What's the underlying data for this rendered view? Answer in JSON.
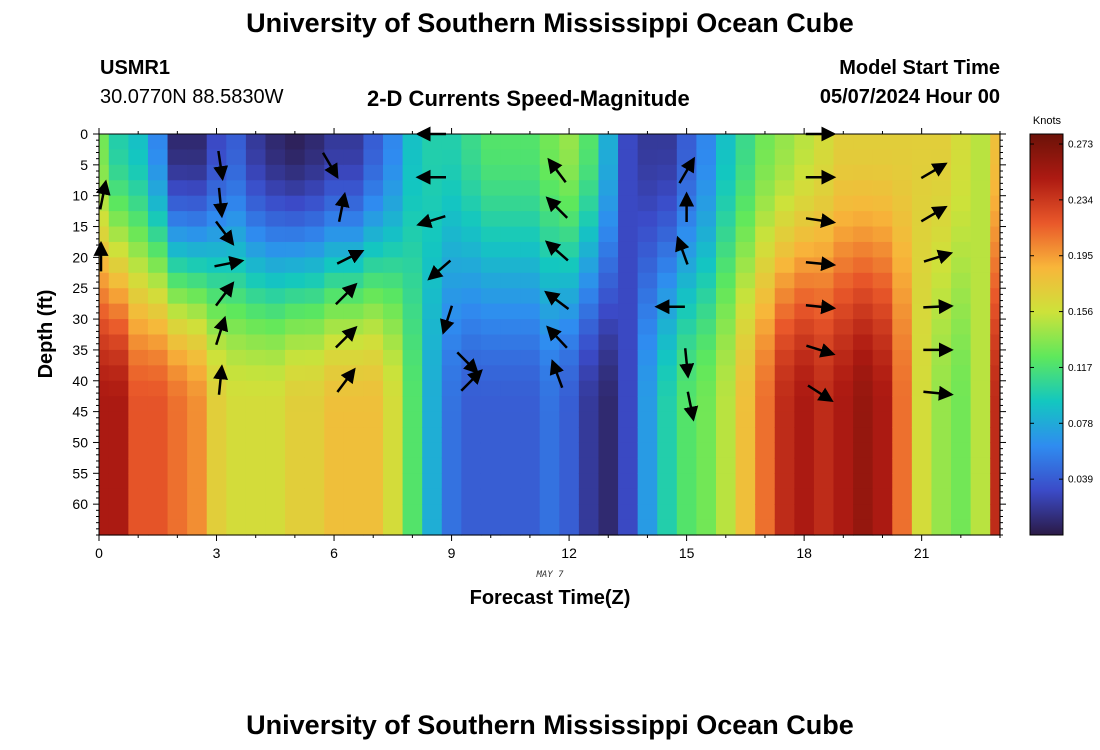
{
  "header": {
    "title_top": "University of Southern Mississippi Ocean Cube",
    "title_bottom": "University of Southern Mississippi Ocean Cube",
    "station": "USMR1",
    "coords": "30.0770N  88.5830W",
    "plot_title": "2-D Currents Speed-Magnitude",
    "model_label": "Model Start Time",
    "model_time": "05/07/2024 Hour 00"
  },
  "colors": {
    "ramp": [
      "#2b1a46",
      "#3b4bc8",
      "#2f8cf0",
      "#13c7c0",
      "#5ee85c",
      "#cde23a",
      "#f8b63a",
      "#e9582a",
      "#ad1a12",
      "#6b1208"
    ]
  },
  "chart_data": {
    "type": "heatmap",
    "xlabel": "Forecast Time(Z)",
    "ylabel": "Depth (ft)",
    "x_sublabel": "MAY 7",
    "xlim": [
      0,
      23
    ],
    "ylim": [
      0,
      65
    ],
    "x_ticks": [
      0,
      3,
      6,
      9,
      12,
      15,
      18,
      21
    ],
    "y_ticks": [
      0,
      5,
      10,
      15,
      20,
      25,
      30,
      35,
      40,
      45,
      50,
      55,
      60
    ],
    "colorbar": {
      "label": "Knots",
      "min": 0,
      "max": 0.28,
      "ticks": [
        0.039,
        0.078,
        0.117,
        0.156,
        0.195,
        0.234,
        0.273
      ]
    },
    "time_profiles": [
      {
        "t": 0.0,
        "surface": 0.13,
        "deep": 0.25
      },
      {
        "t": 0.5,
        "surface": 0.1,
        "deep": 0.25
      },
      {
        "t": 1.0,
        "surface": 0.09,
        "deep": 0.22
      },
      {
        "t": 1.5,
        "surface": 0.06,
        "deep": 0.22
      },
      {
        "t": 2.0,
        "surface": 0.01,
        "deep": 0.21
      },
      {
        "t": 2.5,
        "surface": 0.01,
        "deep": 0.2
      },
      {
        "t": 3.0,
        "surface": 0.03,
        "deep": 0.17
      },
      {
        "t": 3.5,
        "surface": 0.04,
        "deep": 0.16
      },
      {
        "t": 4.0,
        "surface": 0.02,
        "deep": 0.16
      },
      {
        "t": 4.5,
        "surface": 0.01,
        "deep": 0.16
      },
      {
        "t": 5.0,
        "surface": 0.005,
        "deep": 0.17
      },
      {
        "t": 5.5,
        "surface": 0.01,
        "deep": 0.17
      },
      {
        "t": 6.0,
        "surface": 0.02,
        "deep": 0.18
      },
      {
        "t": 6.5,
        "surface": 0.02,
        "deep": 0.18
      },
      {
        "t": 7.0,
        "surface": 0.04,
        "deep": 0.18
      },
      {
        "t": 7.5,
        "surface": 0.06,
        "deep": 0.16
      },
      {
        "t": 8.0,
        "surface": 0.09,
        "deep": 0.12
      },
      {
        "t": 8.5,
        "surface": 0.1,
        "deep": 0.08
      },
      {
        "t": 9.0,
        "surface": 0.1,
        "deep": 0.05
      },
      {
        "t": 9.5,
        "surface": 0.11,
        "deep": 0.04
      },
      {
        "t": 10.0,
        "surface": 0.12,
        "deep": 0.04
      },
      {
        "t": 10.5,
        "surface": 0.12,
        "deep": 0.04
      },
      {
        "t": 11.0,
        "surface": 0.12,
        "deep": 0.04
      },
      {
        "t": 11.5,
        "surface": 0.13,
        "deep": 0.05
      },
      {
        "t": 12.0,
        "surface": 0.14,
        "deep": 0.04
      },
      {
        "t": 12.5,
        "surface": 0.12,
        "deep": 0.02
      },
      {
        "t": 13.0,
        "surface": 0.08,
        "deep": 0.01
      },
      {
        "t": 13.5,
        "surface": 0.03,
        "deep": 0.03
      },
      {
        "t": 14.0,
        "surface": 0.02,
        "deep": 0.07
      },
      {
        "t": 14.5,
        "surface": 0.02,
        "deep": 0.1
      },
      {
        "t": 15.0,
        "surface": 0.04,
        "deep": 0.12
      },
      {
        "t": 15.5,
        "surface": 0.06,
        "deep": 0.13
      },
      {
        "t": 16.0,
        "surface": 0.09,
        "deep": 0.15
      },
      {
        "t": 16.5,
        "surface": 0.11,
        "deep": 0.18
      },
      {
        "t": 17.0,
        "surface": 0.13,
        "deep": 0.21
      },
      {
        "t": 17.5,
        "surface": 0.14,
        "deep": 0.24
      },
      {
        "t": 18.0,
        "surface": 0.15,
        "deep": 0.25
      },
      {
        "t": 18.5,
        "surface": 0.16,
        "deep": 0.24
      },
      {
        "t": 19.0,
        "surface": 0.17,
        "deep": 0.25
      },
      {
        "t": 19.5,
        "surface": 0.17,
        "deep": 0.26
      },
      {
        "t": 20.0,
        "surface": 0.17,
        "deep": 0.25
      },
      {
        "t": 20.5,
        "surface": 0.17,
        "deep": 0.21
      },
      {
        "t": 21.0,
        "surface": 0.17,
        "deep": 0.16
      },
      {
        "t": 21.5,
        "surface": 0.17,
        "deep": 0.14
      },
      {
        "t": 22.0,
        "surface": 0.16,
        "deep": 0.13
      },
      {
        "t": 22.5,
        "surface": 0.15,
        "deep": 0.15
      },
      {
        "t": 23.0,
        "surface": 0.18,
        "deep": 0.24
      }
    ],
    "vectors": [
      {
        "t": 0.1,
        "d": 10,
        "dx": 0.2,
        "dy": 1
      },
      {
        "t": 0.05,
        "d": 20,
        "dx": 0,
        "dy": 1
      },
      {
        "t": 3.1,
        "d": 5,
        "dx": 0.15,
        "dy": -1
      },
      {
        "t": 3.1,
        "d": 11,
        "dx": 0.1,
        "dy": -1
      },
      {
        "t": 3.2,
        "d": 16,
        "dx": 0.6,
        "dy": -0.8
      },
      {
        "t": 3.3,
        "d": 21,
        "dx": 1,
        "dy": 0.2
      },
      {
        "t": 3.2,
        "d": 26,
        "dx": 0.6,
        "dy": 0.8
      },
      {
        "t": 3.1,
        "d": 32,
        "dx": 0.3,
        "dy": 0.95
      },
      {
        "t": 3.1,
        "d": 40,
        "dx": 0.1,
        "dy": 1
      },
      {
        "t": 5.9,
        "d": 5,
        "dx": 0.5,
        "dy": -0.85
      },
      {
        "t": 6.2,
        "d": 12,
        "dx": 0.2,
        "dy": 1
      },
      {
        "t": 6.4,
        "d": 20,
        "dx": 0.9,
        "dy": 0.45
      },
      {
        "t": 6.3,
        "d": 26,
        "dx": 0.7,
        "dy": 0.7
      },
      {
        "t": 6.3,
        "d": 33,
        "dx": 0.7,
        "dy": 0.7
      },
      {
        "t": 6.3,
        "d": 40,
        "dx": 0.6,
        "dy": 0.8
      },
      {
        "t": 8.5,
        "d": 0,
        "dx": -1,
        "dy": 0
      },
      {
        "t": 8.5,
        "d": 7,
        "dx": -1,
        "dy": 0
      },
      {
        "t": 8.5,
        "d": 14,
        "dx": -0.95,
        "dy": -0.3
      },
      {
        "t": 8.7,
        "d": 22,
        "dx": -0.75,
        "dy": -0.65
      },
      {
        "t": 8.9,
        "d": 30,
        "dx": -0.3,
        "dy": -0.95
      },
      {
        "t": 9.4,
        "d": 37,
        "dx": 0.7,
        "dy": -0.7
      },
      {
        "t": 9.5,
        "d": 40,
        "dx": 0.7,
        "dy": 0.7
      },
      {
        "t": 11.7,
        "d": 6,
        "dx": -0.6,
        "dy": 0.8
      },
      {
        "t": 11.7,
        "d": 12,
        "dx": -0.7,
        "dy": 0.7
      },
      {
        "t": 11.7,
        "d": 19,
        "dx": -0.75,
        "dy": 0.65
      },
      {
        "t": 11.7,
        "d": 27,
        "dx": -0.8,
        "dy": 0.6
      },
      {
        "t": 11.7,
        "d": 33,
        "dx": -0.7,
        "dy": 0.75
      },
      {
        "t": 11.7,
        "d": 39,
        "dx": -0.35,
        "dy": 0.95
      },
      {
        "t": 15.0,
        "d": 6,
        "dx": 0.5,
        "dy": 0.85
      },
      {
        "t": 15.0,
        "d": 12,
        "dx": 0,
        "dy": 1
      },
      {
        "t": 14.9,
        "d": 19,
        "dx": -0.35,
        "dy": 0.95
      },
      {
        "t": 14.6,
        "d": 28,
        "dx": -1,
        "dy": 0
      },
      {
        "t": 15.0,
        "d": 37,
        "dx": 0.1,
        "dy": -1
      },
      {
        "t": 15.1,
        "d": 44,
        "dx": 0.2,
        "dy": -1
      },
      {
        "t": 18.4,
        "d": 0,
        "dx": 1,
        "dy": 0
      },
      {
        "t": 18.4,
        "d": 7,
        "dx": 1,
        "dy": 0
      },
      {
        "t": 18.4,
        "d": 14,
        "dx": 1,
        "dy": -0.15
      },
      {
        "t": 18.4,
        "d": 21,
        "dx": 1,
        "dy": -0.1
      },
      {
        "t": 18.4,
        "d": 28,
        "dx": 1,
        "dy": -0.1
      },
      {
        "t": 18.4,
        "d": 35,
        "dx": 0.95,
        "dy": -0.3
      },
      {
        "t": 18.4,
        "d": 42,
        "dx": 0.85,
        "dy": -0.55
      },
      {
        "t": 21.3,
        "d": 6,
        "dx": 0.85,
        "dy": 0.5
      },
      {
        "t": 21.3,
        "d": 13,
        "dx": 0.85,
        "dy": 0.5
      },
      {
        "t": 21.4,
        "d": 20,
        "dx": 0.95,
        "dy": 0.3
      },
      {
        "t": 21.4,
        "d": 28,
        "dx": 1,
        "dy": 0.05
      },
      {
        "t": 21.4,
        "d": 35,
        "dx": 1,
        "dy": 0
      },
      {
        "t": 21.4,
        "d": 42,
        "dx": 1,
        "dy": -0.1
      }
    ]
  }
}
